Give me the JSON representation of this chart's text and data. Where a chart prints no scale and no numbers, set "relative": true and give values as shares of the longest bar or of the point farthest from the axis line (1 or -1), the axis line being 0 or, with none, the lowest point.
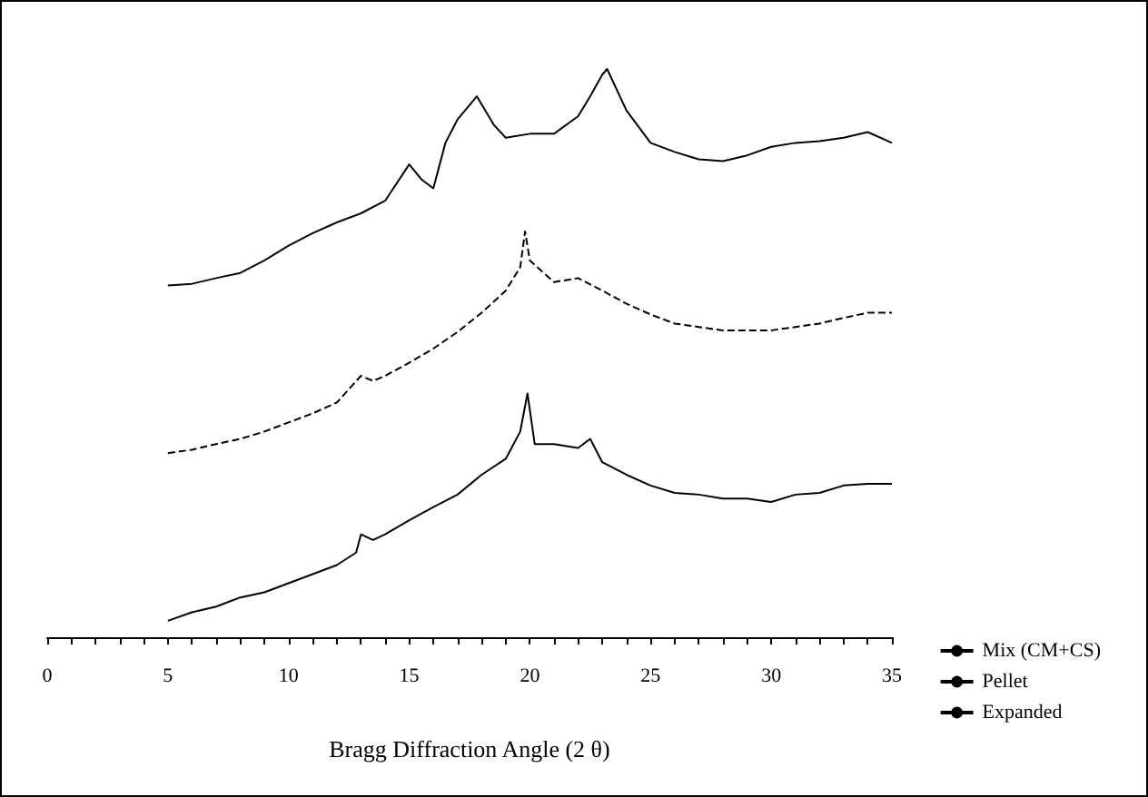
{
  "chart_data": {
    "type": "line",
    "xlabel": "Bragg Diffraction Angle (2 θ)",
    "relative": true,
    "xlim": [
      0,
      35
    ],
    "xticks": [
      0,
      {
        "value": 1,
        "label": null
      },
      {
        "value": 2,
        "label": null
      },
      {
        "value": 3,
        "label": null
      },
      {
        "value": 4,
        "label": null
      },
      5,
      {
        "value": 6,
        "label": null
      },
      {
        "value": 7,
        "label": null
      },
      {
        "value": 8,
        "label": null
      },
      {
        "value": 9,
        "label": null
      },
      10,
      {
        "value": 11,
        "label": null
      },
      {
        "value": 12,
        "label": null
      },
      {
        "value": 13,
        "label": null
      },
      {
        "value": 14,
        "label": null
      },
      15,
      {
        "value": 16,
        "label": null
      },
      {
        "value": 17,
        "label": null
      },
      {
        "value": 18,
        "label": null
      },
      {
        "value": 19,
        "label": null
      },
      20,
      {
        "value": 21,
        "label": null
      },
      {
        "value": 22,
        "label": null
      },
      {
        "value": 23,
        "label": null
      },
      {
        "value": 24,
        "label": null
      },
      25,
      {
        "value": 26,
        "label": null
      },
      {
        "value": 27,
        "label": null
      },
      {
        "value": 28,
        "label": null
      },
      {
        "value": 29,
        "label": null
      },
      30,
      {
        "value": 31,
        "label": null
      },
      {
        "value": 32,
        "label": null
      },
      {
        "value": 33,
        "label": null
      },
      {
        "value": 34,
        "label": null
      },
      35
    ],
    "tick_labels": "x",
    "grid": false,
    "legend": "bottom right",
    "series": [
      {
        "name": "Mix (CM+CS)",
        "color": "#000000",
        "line_style": "solid",
        "x": [
          5,
          6,
          7,
          8,
          9,
          10,
          11,
          12,
          13,
          14,
          15,
          15.5,
          16,
          16.5,
          17,
          17.8,
          18.5,
          19,
          20,
          21,
          22,
          22.5,
          23,
          23.2,
          24,
          25,
          26,
          27,
          28,
          29,
          30,
          31,
          32,
          33,
          34,
          35
        ],
        "values": [
          0.619,
          0.622,
          0.632,
          0.641,
          0.663,
          0.689,
          0.711,
          0.73,
          0.746,
          0.768,
          0.832,
          0.806,
          0.79,
          0.87,
          0.911,
          0.952,
          0.902,
          0.879,
          0.886,
          0.886,
          0.917,
          0.952,
          0.99,
          1,
          0.927,
          0.87,
          0.854,
          0.841,
          0.838,
          0.848,
          0.863,
          0.87,
          0.873,
          0.879,
          0.889,
          0.87
        ]
      },
      {
        "name": "Pellet",
        "color": "#000000",
        "line_style": "dashed",
        "x": [
          5,
          6,
          7,
          8,
          9,
          10,
          11,
          12,
          13,
          13.5,
          14,
          15,
          16,
          17,
          18,
          19,
          19.6,
          19.8,
          20,
          21,
          22,
          23,
          24,
          25,
          26,
          27,
          28,
          29,
          30,
          31,
          32,
          33,
          34,
          35
        ],
        "values": [
          0.324,
          0.33,
          0.34,
          0.349,
          0.362,
          0.378,
          0.394,
          0.413,
          0.46,
          0.451,
          0.46,
          0.483,
          0.508,
          0.537,
          0.571,
          0.61,
          0.651,
          0.714,
          0.663,
          0.625,
          0.632,
          0.61,
          0.587,
          0.568,
          0.552,
          0.546,
          0.54,
          0.54,
          0.54,
          0.546,
          0.552,
          0.562,
          0.571,
          0.571
        ]
      },
      {
        "name": "Expanded",
        "color": "#000000",
        "line_style": "solid",
        "x": [
          5,
          6,
          7,
          8,
          9,
          10,
          11,
          12,
          12.8,
          13,
          13.5,
          14,
          15,
          16,
          17,
          18,
          19,
          19.6,
          19.9,
          20.2,
          21,
          22,
          22.5,
          23,
          24,
          25,
          26,
          27,
          28,
          29,
          30,
          31,
          32,
          33,
          34,
          35
        ],
        "values": [
          0.029,
          0.044,
          0.054,
          0.07,
          0.079,
          0.095,
          0.111,
          0.127,
          0.149,
          0.181,
          0.171,
          0.181,
          0.206,
          0.229,
          0.251,
          0.286,
          0.314,
          0.362,
          0.429,
          0.34,
          0.34,
          0.333,
          0.349,
          0.308,
          0.286,
          0.267,
          0.254,
          0.251,
          0.244,
          0.244,
          0.238,
          0.251,
          0.254,
          0.267,
          0.27,
          0.27
        ]
      }
    ]
  }
}
